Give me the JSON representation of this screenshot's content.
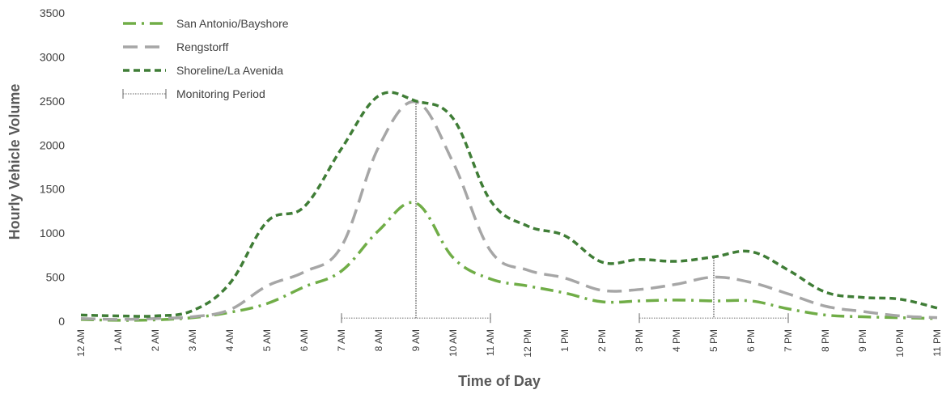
{
  "chart_data": {
    "type": "line",
    "title": "",
    "xlabel": "Time of Day",
    "ylabel": "Hourly Vehicle Volume",
    "ylim": [
      0,
      3500
    ],
    "yticks": [
      0,
      500,
      1000,
      1500,
      2000,
      2500,
      3000,
      3500
    ],
    "grid": false,
    "legend_position": "top-left",
    "categories": [
      "12 AM",
      "1 AM",
      "2 AM",
      "3 AM",
      "4 AM",
      "5 AM",
      "6 AM",
      "7 AM",
      "8 AM",
      "9 AM",
      "10 AM",
      "11 AM",
      "12 PM",
      "1 PM",
      "2 PM",
      "3 PM",
      "4 PM",
      "5 PM",
      "6 PM",
      "7 PM",
      "8 PM",
      "9 PM",
      "10 PM",
      "11 PM"
    ],
    "series": [
      {
        "name": "San Antonio/Bayshore",
        "color": "#70ad47",
        "style": "dash-dot",
        "values": [
          20,
          10,
          15,
          40,
          100,
          200,
          390,
          570,
          1030,
          1340,
          720,
          480,
          400,
          320,
          220,
          230,
          240,
          230,
          230,
          140,
          70,
          50,
          40,
          30
        ]
      },
      {
        "name": "Rengstorff",
        "color": "#a6a6a6",
        "style": "dashed",
        "values": [
          30,
          20,
          30,
          50,
          130,
          400,
          560,
          850,
          1980,
          2490,
          1800,
          800,
          580,
          490,
          350,
          360,
          420,
          500,
          440,
          310,
          170,
          110,
          60,
          40
        ]
      },
      {
        "name": "Shoreline/La Avenida",
        "color": "#3f7d36",
        "style": "short-dashed",
        "values": [
          70,
          60,
          60,
          120,
          430,
          1130,
          1300,
          1960,
          2560,
          2500,
          2300,
          1370,
          1080,
          970,
          670,
          700,
          680,
          730,
          790,
          580,
          330,
          270,
          250,
          150
        ]
      }
    ],
    "monitoring_periods": [
      {
        "start": "7 AM",
        "end": "11 AM",
        "peak": "9 AM"
      },
      {
        "start": "3 PM",
        "end": "7 PM",
        "peak": "5 PM"
      }
    ],
    "legend_monitoring_label": "Monitoring Period"
  }
}
